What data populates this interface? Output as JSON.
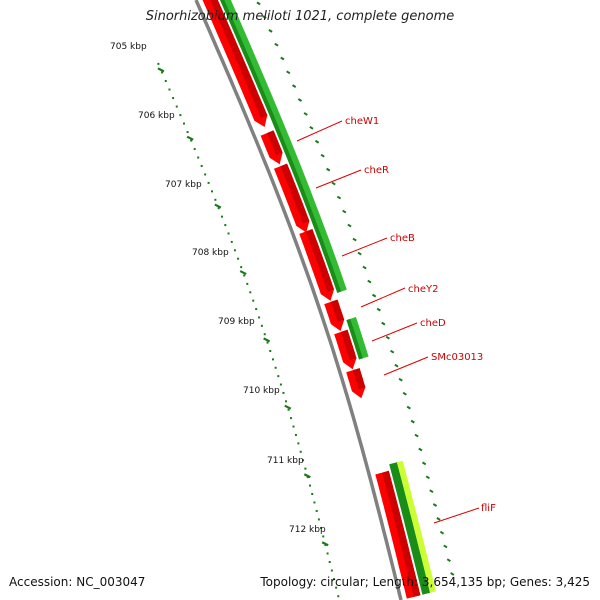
{
  "title": "Sinorhizobium meliloti 1021, complete genome",
  "accession": "Accession: NC_003047",
  "summary": "Topology: circular; Length: 3,654,135 bp; Genes: 3,425",
  "colors": {
    "backbone": "#808080",
    "cds": "#ff0000",
    "gene_green": "#33bb33",
    "gene_dark_green": "#1a8c1a",
    "gene_light": "#ccff33",
    "tick": "#1a7a1a",
    "label": "#cc0000"
  },
  "scale_labels": [
    "705 kbp",
    "706 kbp",
    "707 kbp",
    "708 kbp",
    "709 kbp",
    "710 kbp",
    "711 kbp",
    "712 kbp"
  ],
  "genes": [
    "cheW1",
    "cheR",
    "cheB",
    "cheY2",
    "cheD",
    "SMc03013",
    "fliF"
  ]
}
